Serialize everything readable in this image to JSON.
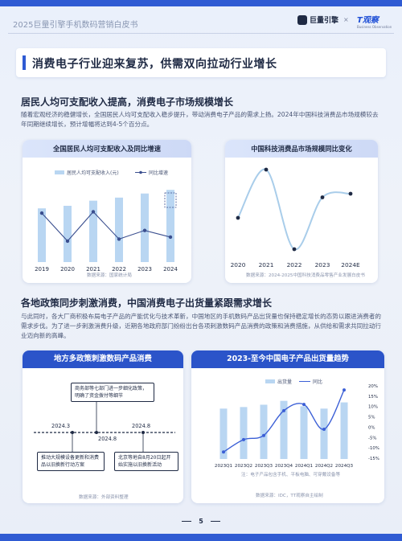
{
  "header": {
    "doc_title": "2025巨量引擎手机数码营销白皮书",
    "logo1": "巨量引擎",
    "logo_sep": "×",
    "logo2": "T观察",
    "logo2_sub": "Business Observation"
  },
  "main_title": "消费电子行业迎来复苏，供需双向拉动行业增长",
  "section1": {
    "title": "居民人均可支配收入提高，消费电子市场规模增长",
    "para": "随着宏观经济的稳健增长，全国居民人均可支配收入稳步提升，带动消费电子产品的需求上扬。2024年中国科技消费品市场规模较去年同期继续增长，预计增幅将达到4-5个百分点。"
  },
  "chart1_card": {
    "title": "全国居民人均可支配收入及同比增速",
    "source": "数据来源：国家统计局"
  },
  "chart2_card": {
    "title": "中国科技消费品市场规模同比变化",
    "source": "数据来源：2024-2025中国科技消费品零售产业发展白皮书"
  },
  "section2": {
    "title": "各地政策同步刺激消费，中国消费电子出货量紧跟需求增长",
    "para": "与此同时，各大厂商积极布局电子产品的产能优化与技术革新，中国地区的手机数码产品出货量也保持稳定增长的态势以跟进消费者的需求步伐。为了进一步刺激消费升级，近期各地政府部门纷纷出台各项刺激数码产品消费的政策和消费措施，从供给和需求共同拉动行业迈向新的高峰。"
  },
  "timeline_card": {
    "title": "地方多政策刺激数码产品消费",
    "source": "数据来源：外部资料整理",
    "events": [
      {
        "date": "2024.3",
        "text": "推动大规模设备更新和消费品以旧换新行动方案"
      },
      {
        "date": "2024.8",
        "text": "商务部等七部门进一步细化政策，明确了资金拨付等细节"
      },
      {
        "date": "2024.8",
        "text": "北京等地自8月20日起开始实施以旧换新活动"
      }
    ]
  },
  "chart3_card": {
    "title": "2023-至今中国电子产品出货量趋势",
    "note": "注：电子产品包含手机、平板电脑、可穿戴设备等",
    "source": "数据来源：IDC，TT观察自主绘制"
  },
  "footer": {
    "page": "5"
  },
  "chart_data": [
    {
      "type": "bar",
      "title": "全国居民人均可支配收入及同比增速",
      "categories": [
        "2019",
        "2020",
        "2021",
        "2022",
        "2023",
        "2024"
      ],
      "series": [
        {
          "name": "居民人均可支配收入(元)",
          "type": "bar",
          "values": [
            30733,
            32189,
            35128,
            36883,
            39218,
            41314
          ]
        },
        {
          "name": "同比增速",
          "type": "line",
          "values": [
            8.9,
            4.7,
            9.1,
            5.0,
            6.3,
            5.3
          ]
        }
      ],
      "legend": "top",
      "highlight_last": true
    },
    {
      "type": "line",
      "title": "中国科技消费品市场规模同比变化",
      "categories": [
        "2020",
        "2021",
        "2022",
        "2023",
        "2024E"
      ],
      "series": [
        {
          "name": "",
          "values": [
            -5.0,
            15.0,
            -18.0,
            3.5,
            5.0
          ]
        }
      ],
      "smooth": true
    },
    {
      "type": "bar",
      "title": "2023-至今中国电子产品出货量趋势",
      "categories": [
        "2023Q1",
        "2023Q2",
        "2023Q3",
        "2023Q4",
        "2024Q1",
        "2024Q2",
        "2024Q3"
      ],
      "series": [
        {
          "name": "出货量",
          "type": "bar",
          "values": [
            6.5,
            6.7,
            7.0,
            7.5,
            6.8,
            6.5,
            7.3
          ]
        },
        {
          "name": "同比",
          "type": "line",
          "values": [
            -12,
            -6,
            -4,
            8,
            11,
            -1,
            18
          ]
        }
      ],
      "y2_ticks": [
        "20%",
        "15%",
        "10%",
        "5%",
        "0%",
        "-5%",
        "-10%",
        "-15%"
      ],
      "y2lim": [
        -15,
        20
      ],
      "legend": "top"
    }
  ]
}
